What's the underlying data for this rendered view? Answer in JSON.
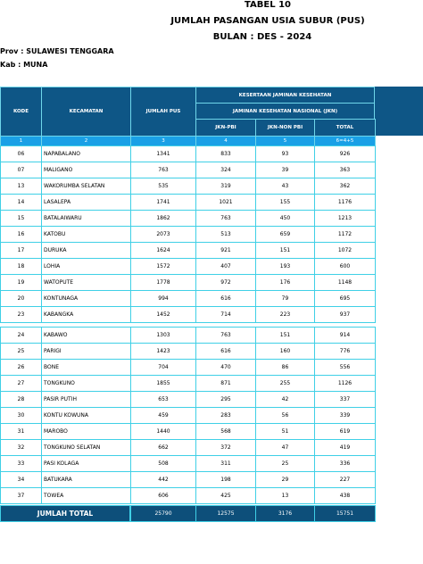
{
  "header": {
    "title": "TABEL 10",
    "subtitle": "JUMLAH PASANGAN USIA SUBUR (PUS)",
    "period": "BULAN  : DES -  2024",
    "province": "Prov :  SULAWESI TENGGARA",
    "regency": "Kab  :  MUNA"
  },
  "table": {
    "columns": [
      "KODE",
      "KECAMATAN",
      "JUMLAH PUS",
      "JKN-PBI",
      "JKN-NON PBI",
      "TOTAL"
    ],
    "group_header": "KESERTAAN JAMINAN KESEHATAN",
    "sub_group_header": "JAMINAN KESEHATAN NASIONAL (JKN)",
    "column_numbers": [
      "1",
      "2",
      "3",
      "4",
      "5",
      "6=4+5"
    ],
    "row_groups": [
      [
        [
          "06",
          "NAPABALANO",
          1341,
          833,
          93,
          926
        ],
        [
          "07",
          "MALIGANO",
          763,
          324,
          39,
          363
        ],
        [
          "13",
          "WAKORUMBA SELATAN",
          535,
          319,
          43,
          362
        ],
        [
          "14",
          "LASALEPA",
          1741,
          1021,
          155,
          1176
        ],
        [
          "15",
          "BATALAIWARU",
          1862,
          763,
          450,
          1213
        ],
        [
          "16",
          "KATOBU",
          2073,
          513,
          659,
          1172
        ],
        [
          "17",
          "DURUKA",
          1624,
          921,
          151,
          1072
        ],
        [
          "18",
          "LOHIA",
          1572,
          407,
          193,
          600
        ],
        [
          "19",
          "WATOPUTE",
          1778,
          972,
          176,
          1148
        ],
        [
          "20",
          "KONTUNAGA",
          994,
          616,
          79,
          695
        ],
        [
          "23",
          "KABANGKA",
          1452,
          714,
          223,
          937
        ]
      ],
      [
        [
          "24",
          "KABAWO",
          1303,
          763,
          151,
          914
        ],
        [
          "25",
          "PARIGI",
          1423,
          616,
          160,
          776
        ],
        [
          "26",
          "BONE",
          704,
          470,
          86,
          556
        ],
        [
          "27",
          "TONGKUNO",
          1855,
          871,
          255,
          1126
        ],
        [
          "28",
          "PASIR PUTIH",
          653,
          295,
          42,
          337
        ],
        [
          "30",
          "KONTU KOWUNA",
          459,
          283,
          56,
          339
        ],
        [
          "31",
          "MAROBO",
          1440,
          568,
          51,
          619
        ],
        [
          "32",
          "TONGKUNO SELATAN",
          662,
          372,
          47,
          419
        ],
        [
          "33",
          "PASI KOLAGA",
          508,
          311,
          25,
          336
        ],
        [
          "34",
          "BATUKARA",
          442,
          198,
          29,
          227
        ],
        [
          "37",
          "TOWEA",
          606,
          425,
          13,
          438
        ]
      ]
    ],
    "total": {
      "label": "JUMLAH TOTAL",
      "values": [
        25790,
        12575,
        3176,
        15751
      ]
    }
  }
}
